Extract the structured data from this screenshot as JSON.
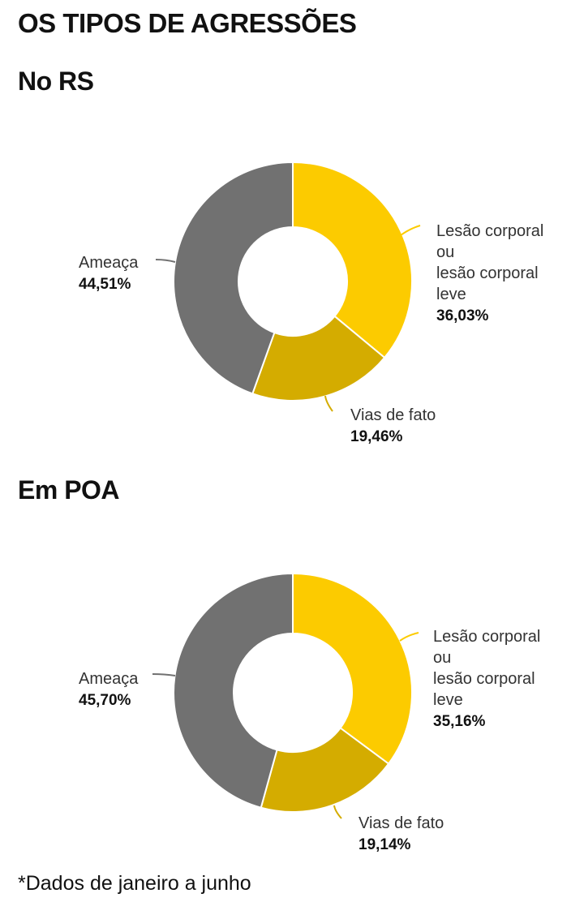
{
  "title": "OS TIPOS DE AGRESSÕES",
  "footnote": "*Dados de janeiro a junho",
  "colors": {
    "lesao": "#fccb00",
    "vias": "#d4ac00",
    "ameaca": "#717171"
  },
  "chart_data": [
    {
      "type": "pie",
      "title": "No RS",
      "slices": [
        {
          "label_lines": [
            "Lesão corporal",
            "ou",
            "lesão corporal",
            "leve"
          ],
          "value_label": "36,03%",
          "value": 36.03,
          "color": "#fccb00"
        },
        {
          "label_lines": [
            "Vias de fato"
          ],
          "value_label": "19,46%",
          "value": 19.46,
          "color": "#d4ac00"
        },
        {
          "label_lines": [
            "Ameaça"
          ],
          "value_label": "44,51%",
          "value": 44.51,
          "color": "#717171"
        }
      ]
    },
    {
      "type": "pie",
      "title": "Em POA",
      "slices": [
        {
          "label_lines": [
            "Lesão corporal",
            "ou",
            "lesão corporal",
            "leve"
          ],
          "value_label": "35,16%",
          "value": 35.16,
          "color": "#fccb00"
        },
        {
          "label_lines": [
            "Vias de fato"
          ],
          "value_label": "19,14%",
          "value": 19.14,
          "color": "#d4ac00"
        },
        {
          "label_lines": [
            "Ameaça"
          ],
          "value_label": "45,70%",
          "value": 45.7,
          "color": "#717171"
        }
      ]
    }
  ]
}
